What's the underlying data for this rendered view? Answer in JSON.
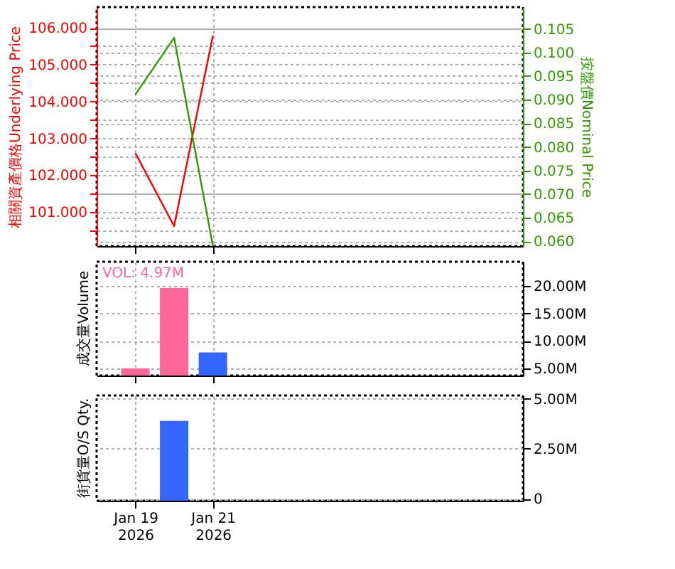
{
  "chart_data": [
    {
      "type": "line",
      "ylabel": "相關資產價格Underlying Price",
      "y2label": "按盤價Nominal Price",
      "x": [
        "2026-01-19",
        "2026-01-20",
        "2026-01-21"
      ],
      "xlim": [
        "2026-01-18",
        "2026-01-29"
      ],
      "xticks": [
        {
          "value": "2026-01-19",
          "label": null
        },
        {
          "value": "2026-01-21",
          "label": null
        }
      ],
      "ylim": [
        100.08,
        106.56
      ],
      "yticks": [
        {
          "value": 100.5,
          "label": null
        },
        {
          "value": 101,
          "label": "101.000"
        },
        {
          "value": 101.5,
          "label": null
        },
        {
          "value": 102,
          "label": "102.000"
        },
        {
          "value": 102.5,
          "label": null
        },
        {
          "value": 103,
          "label": "103.000"
        },
        {
          "value": 103.5,
          "label": null
        },
        {
          "value": 104,
          "label": "104.000"
        },
        {
          "value": 104.5,
          "label": null
        },
        {
          "value": 105,
          "label": "105.000"
        },
        {
          "value": 105.5,
          "label": null
        },
        {
          "value": 106,
          "label": "106.000"
        }
      ],
      "y2lim": [
        0.059,
        0.1096
      ],
      "y2ticks": [
        {
          "value": 0.06,
          "label": "0.060"
        },
        {
          "value": 0.065,
          "label": "0.065"
        },
        {
          "value": 0.07,
          "label": "0.070"
        },
        {
          "value": 0.075,
          "label": "0.075"
        },
        {
          "value": 0.08,
          "label": "0.080"
        },
        {
          "value": 0.085,
          "label": "0.085"
        },
        {
          "value": 0.09,
          "label": "0.090"
        },
        {
          "value": 0.095,
          "label": "0.095"
        },
        {
          "value": 0.1,
          "label": "0.100"
        },
        {
          "value": 0.105,
          "label": "0.105"
        }
      ],
      "series": [
        {
          "color": "#ff0000",
          "values": [
            102.6,
            100.62,
            105.79
          ]
        },
        {
          "color": "#339900",
          "axis": "y2",
          "values": [
            0.0911,
            0.1031,
            0.059
          ]
        }
      ],
      "grid": true,
      "marker": "none",
      "tick_labels": "y"
    },
    {
      "type": "bar",
      "ylabel": "成交量Volume",
      "annotations": [
        "VOL: 4.97M"
      ],
      "x": [
        "2026-01-19",
        "2026-01-20",
        "2026-01-21"
      ],
      "xlim": [
        "2026-01-18",
        "2026-01-29"
      ],
      "xticks": [
        {
          "value": "2026-01-19",
          "label": null
        },
        {
          "value": "2026-01-21",
          "label": null
        }
      ],
      "values": [
        5000000,
        19600000,
        7900000
      ],
      "colors": [
        "#ff6699",
        "#ff6699",
        "#3366ff"
      ],
      "ylim": [
        3710000,
        24400000
      ],
      "yticks": [
        {
          "value": 5000000,
          "label": "5.00M"
        },
        {
          "value": 10000000,
          "label": "10.00M"
        },
        {
          "value": 15000000,
          "label": "15.00M"
        },
        {
          "value": 20000000,
          "label": "20.00M"
        }
      ],
      "grid": true,
      "tick_labels": "y"
    },
    {
      "type": "bar",
      "ylabel": "街貨量O/S Qty.",
      "x": [
        "2026-01-20"
      ],
      "xlim": [
        "2026-01-18",
        "2026-01-29"
      ],
      "xticks": [
        {
          "value": "2026-01-19",
          "label": "Jan 19\n2026"
        },
        {
          "value": "2026-01-21",
          "label": "Jan 21\n2026"
        }
      ],
      "values": [
        3900000
      ],
      "colors": [
        "#3366ff"
      ],
      "ylim": [
        -100000,
        5170000
      ],
      "yticks": [
        0,
        {
          "value": 2500000,
          "label": "2.50M"
        },
        {
          "value": 5000000,
          "label": "5.00M"
        }
      ],
      "grid": true
    }
  ]
}
